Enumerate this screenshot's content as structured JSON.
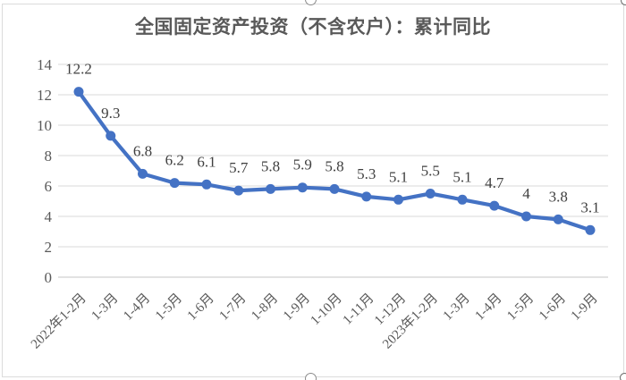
{
  "chart_frame": {
    "border_color": "#DCDCDC",
    "handle_color": "#8C8C8C"
  },
  "chart_data": {
    "type": "line",
    "title": "全国固定资产投资（不含农户）：累计同比",
    "categories": [
      "2022年1-2月",
      "1-3月",
      "1-4月",
      "1-5月",
      "1-6月",
      "1-7月",
      "1-8月",
      "1-9月",
      "1-10月",
      "1-11月",
      "1-12月",
      "2023年1-2月",
      "1-3月",
      "1-4月",
      "1-5月",
      "1-6月",
      "1-9月"
    ],
    "values": [
      12.2,
      9.3,
      6.8,
      6.2,
      6.1,
      5.7,
      5.8,
      5.9,
      5.8,
      5.3,
      5.1,
      5.5,
      5.1,
      4.7,
      4,
      3.8,
      3.1
    ],
    "point_labels": [
      "12.2",
      "9.3",
      "6.8",
      "6.2",
      "6.1",
      "5.7",
      "5.8",
      "5.9",
      "5.8",
      "5.3",
      "5.1",
      "5.5",
      "5.1",
      "4.7",
      "4",
      "3.8",
      "3.1"
    ],
    "xlabel": "",
    "ylabel": "",
    "ylim": [
      0,
      14
    ],
    "yticks": [
      0,
      2,
      4,
      6,
      8,
      10,
      12,
      14
    ],
    "grid": true,
    "legend_position": "none",
    "line_color": "#4472C4",
    "marker_color": "#4472C4",
    "gridline_color": "#D9D9D9",
    "axis_line_color": "#C6C6C6",
    "axis_label_color": "#595959",
    "data_label_color": "#3F3F3F",
    "title_color": "#595959"
  }
}
